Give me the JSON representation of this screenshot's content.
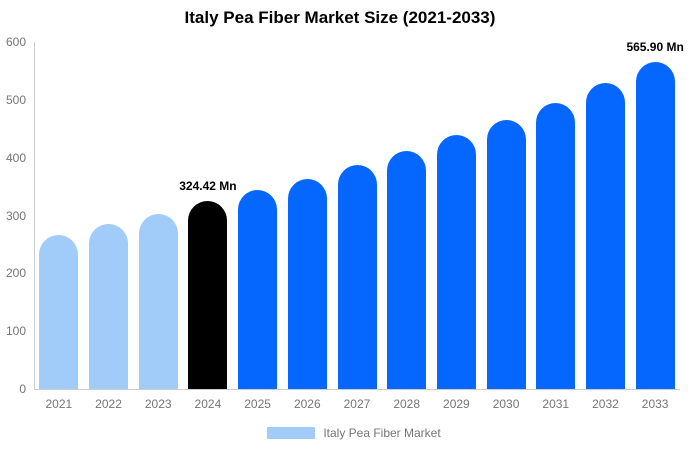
{
  "chart_data": {
    "type": "bar",
    "title": "Italy Pea Fiber Market Size (2021-2033)",
    "categories": [
      "2021",
      "2022",
      "2023",
      "2024",
      "2025",
      "2026",
      "2027",
      "2028",
      "2029",
      "2030",
      "2031",
      "2032",
      "2033"
    ],
    "values": [
      266,
      285,
      302,
      324.42,
      344,
      364,
      388,
      412,
      439,
      466,
      495,
      529,
      565.9
    ],
    "bar_colors": [
      "#a1cbf9",
      "#a1cbf9",
      "#a1cbf9",
      "#000000",
      "#0667fe",
      "#0667fe",
      "#0667fe",
      "#0667fe",
      "#0667fe",
      "#0667fe",
      "#0667fe",
      "#0667fe",
      "#0667fe"
    ],
    "annotations": [
      {
        "index": 3,
        "text": "324.42 Mn"
      },
      {
        "index": 12,
        "text": "565.90 Mn"
      }
    ],
    "xlabel": "",
    "ylabel": "",
    "ylim": [
      0,
      600
    ],
    "yticks": [
      0,
      100,
      200,
      300,
      400,
      500,
      600
    ],
    "grid": false,
    "legend_position": "bottom",
    "legend": {
      "label": "Italy Pea Fiber Market",
      "color": "#a1cbf9"
    },
    "colors": {
      "series_past": "#a1cbf9",
      "series_highlight": "#000000",
      "series_forecast": "#0667fe",
      "axis_line": "#cccccc",
      "tick_text": "#757575",
      "title_text": "#000000",
      "annotation_text": "#000000",
      "background": "#ffffff"
    }
  }
}
